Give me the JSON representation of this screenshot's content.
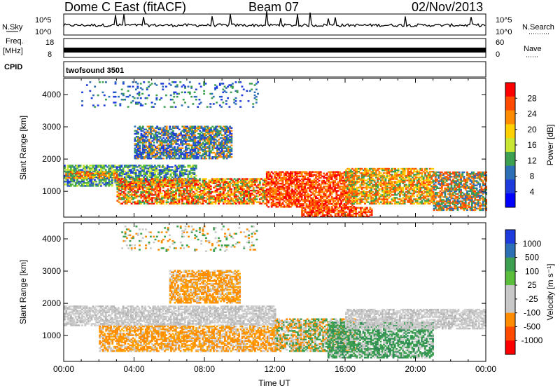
{
  "header": {
    "station": "Dome C East (fitACF)",
    "beam": "Beam 07",
    "date": "02/Nov/2013"
  },
  "strip_labels": {
    "nsky": "N.Sky",
    "nsearch": "N.Search",
    "freq_line1": "Freq.",
    "freq_line2": "[MHz]",
    "nave": "Nave",
    "cpid": "CPID",
    "cpid_value": "twofsound 3501"
  },
  "strip_ticks": {
    "noise_left": [
      "10^5",
      "10^0"
    ],
    "noise_right": [
      "10^5",
      "10^0"
    ],
    "freq_left": [
      "18",
      "8"
    ],
    "nave_right": [
      "60",
      "0"
    ]
  },
  "chart_data": [
    {
      "type": "heatmap",
      "panel": "power",
      "ylabel": "Slant Range [km]",
      "xlabel": "",
      "yticks": [
        "1000",
        "2000",
        "3000",
        "4000"
      ],
      "ylim": [
        200,
        4500
      ],
      "xlim_hours": [
        0,
        24
      ],
      "colorbar": {
        "label": "Power [dB]",
        "ticks": [
          "28",
          "24",
          "20",
          "16",
          "12",
          "8",
          "4"
        ],
        "colors": [
          "#ff0000",
          "#ff4a00",
          "#ff8c00",
          "#ffd000",
          "#c8e632",
          "#3ca050",
          "#2d6fb4",
          "#1e3cdc",
          "#0000ff"
        ]
      },
      "bands": [
        {
          "t0": 0.0,
          "t1": 7.5,
          "r0": 1150,
          "r1": 1800,
          "intensity": "green-blue"
        },
        {
          "t0": 0.0,
          "t1": 3.0,
          "r0": 1400,
          "r1": 1600,
          "intensity": "orange"
        },
        {
          "t0": 3.0,
          "t1": 11.5,
          "r0": 600,
          "r1": 1400,
          "intensity": "orange-red"
        },
        {
          "t0": 11.5,
          "t1": 16.5,
          "r0": 500,
          "r1": 1600,
          "intensity": "red"
        },
        {
          "t0": 13.5,
          "t1": 17.5,
          "r0": 200,
          "r1": 500,
          "intensity": "red"
        },
        {
          "t0": 16.0,
          "t1": 21.0,
          "r0": 600,
          "r1": 1700,
          "intensity": "orange"
        },
        {
          "t0": 21.0,
          "t1": 24.0,
          "r0": 400,
          "r1": 1600,
          "intensity": "orange-green"
        },
        {
          "t0": 4.0,
          "t1": 9.5,
          "r0": 2000,
          "r1": 3000,
          "intensity": "blue-green"
        },
        {
          "t0": 1.0,
          "t1": 11.0,
          "r0": 3600,
          "r1": 4400,
          "intensity": "sparse-blue"
        }
      ]
    },
    {
      "type": "heatmap",
      "panel": "velocity",
      "ylabel": "Slant Range [km]",
      "xlabel": "Time UT",
      "yticks": [
        "1000",
        "2000",
        "3000",
        "4000"
      ],
      "ylim": [
        200,
        4500
      ],
      "xlim_hours": [
        0,
        24
      ],
      "xticks": [
        "00:00",
        "04:00",
        "08:00",
        "12:00",
        "16:00",
        "20:00",
        "00:00"
      ],
      "colorbar": {
        "label": "Velocity [m s⁻¹]",
        "ticks": [
          "1000",
          "500",
          "100",
          "25",
          "-25",
          "-100",
          "-500",
          "-1000"
        ],
        "colors": [
          "#1e3cdc",
          "#2d6fb4",
          "#3ca050",
          "#5abe3c",
          "#c8c8c8",
          "#c8c8c8",
          "#ff8c00",
          "#ff4a00",
          "#ff0000"
        ]
      },
      "bands": [
        {
          "t0": 0.0,
          "t1": 12.0,
          "r0": 1300,
          "r1": 1900,
          "intensity": "grey"
        },
        {
          "t0": 2.0,
          "t1": 12.0,
          "r0": 500,
          "r1": 1300,
          "intensity": "orange"
        },
        {
          "t0": 12.0,
          "t1": 16.5,
          "r0": 500,
          "r1": 1500,
          "intensity": "orange-green"
        },
        {
          "t0": 15.0,
          "t1": 21.0,
          "r0": 300,
          "r1": 1400,
          "intensity": "green"
        },
        {
          "t0": 16.0,
          "t1": 24.0,
          "r0": 1200,
          "r1": 1800,
          "intensity": "grey"
        },
        {
          "t0": 6.0,
          "t1": 10.0,
          "r0": 2000,
          "r1": 3000,
          "intensity": "orange"
        },
        {
          "t0": 3.0,
          "t1": 11.0,
          "r0": 3600,
          "r1": 4400,
          "intensity": "sparse-grey"
        }
      ]
    }
  ]
}
